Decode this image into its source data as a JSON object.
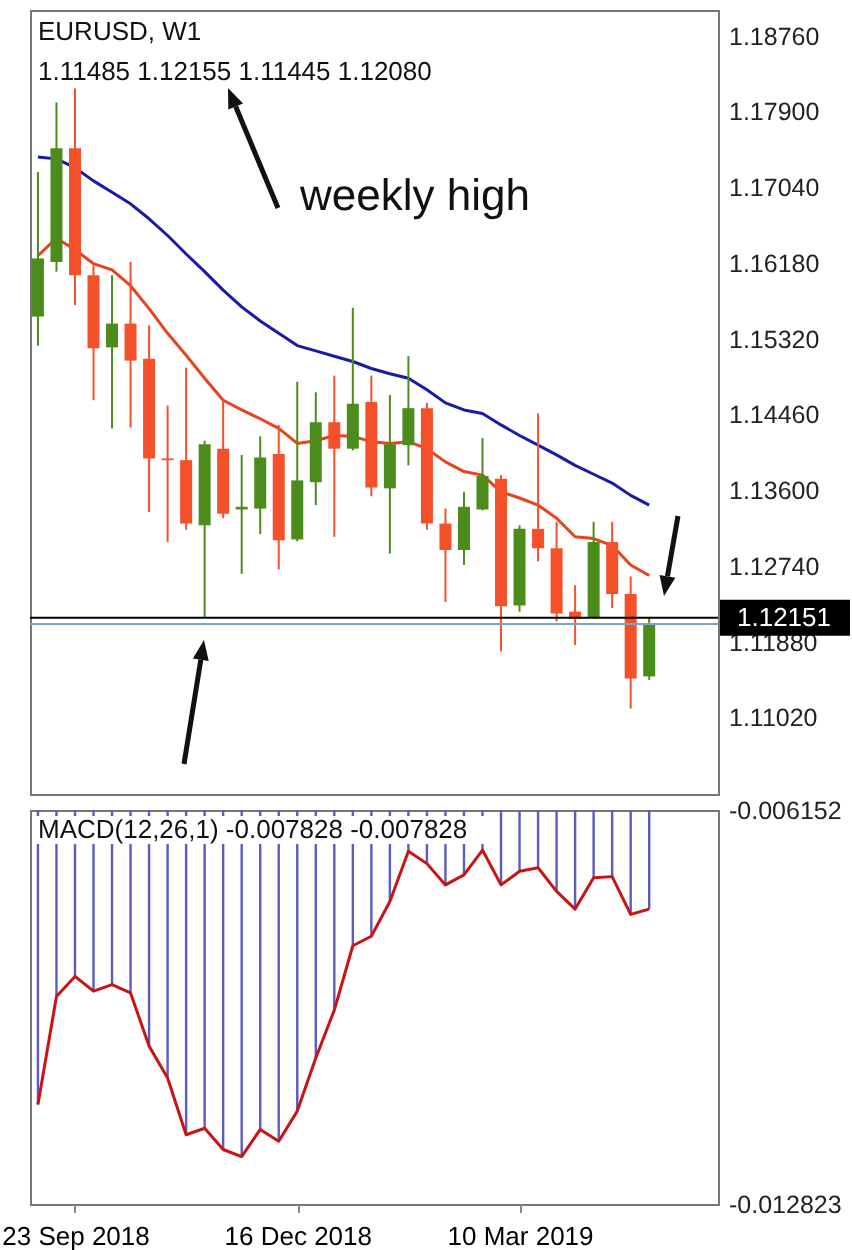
{
  "chart_data": [
    {
      "type": "candlestick",
      "title": "EURUSD, W1",
      "subtitle": "1.11485 1.12155 1.11445 1.12080",
      "annotations": [
        "weekly high"
      ],
      "x": [
        "2018-09-09",
        "2018-09-16",
        "2018-09-23",
        "2018-09-30",
        "2018-10-07",
        "2018-10-14",
        "2018-10-21",
        "2018-10-28",
        "2018-11-04",
        "2018-11-11",
        "2018-11-18",
        "2018-11-25",
        "2018-12-02",
        "2018-12-09",
        "2018-12-16",
        "2018-12-23",
        "2018-12-30",
        "2019-01-06",
        "2019-01-13",
        "2019-01-20",
        "2019-01-27",
        "2019-02-03",
        "2019-02-10",
        "2019-02-17",
        "2019-02-24",
        "2019-03-03",
        "2019-03-10",
        "2019-03-17",
        "2019-03-24",
        "2019-03-31",
        "2019-04-07",
        "2019-04-14",
        "2019-04-21",
        "2019-04-28"
      ],
      "ohlc": [
        [
          1.1557,
          1.1721,
          1.1524,
          1.1623
        ],
        [
          1.1619,
          1.18,
          1.1608,
          1.1748
        ],
        [
          1.1748,
          1.1816,
          1.157,
          1.1604
        ],
        [
          1.1604,
          1.1615,
          1.1462,
          1.1521
        ],
        [
          1.1522,
          1.1604,
          1.143,
          1.1549
        ],
        [
          1.1549,
          1.1619,
          1.1431,
          1.1507
        ],
        [
          1.1509,
          1.1547,
          1.1335,
          1.1396
        ],
        [
          1.1396,
          1.1456,
          1.1301,
          1.1394
        ],
        [
          1.1394,
          1.1499,
          1.1315,
          1.1322
        ],
        [
          1.132,
          1.1416,
          1.1215,
          1.1412
        ],
        [
          1.1407,
          1.1464,
          1.1328,
          1.1333
        ],
        [
          1.1338,
          1.14,
          1.1265,
          1.1341
        ],
        [
          1.1339,
          1.1421,
          1.131,
          1.1397
        ],
        [
          1.1401,
          1.1434,
          1.127,
          1.1303
        ],
        [
          1.1304,
          1.1483,
          1.1302,
          1.1371
        ],
        [
          1.1369,
          1.1471,
          1.1343,
          1.1437
        ],
        [
          1.1437,
          1.149,
          1.1307,
          1.1407
        ],
        [
          1.1407,
          1.1567,
          1.1405,
          1.1458
        ],
        [
          1.146,
          1.149,
          1.1353,
          1.1363
        ],
        [
          1.1362,
          1.1468,
          1.1288,
          1.1412
        ],
        [
          1.1411,
          1.1512,
          1.1388,
          1.1453
        ],
        [
          1.1453,
          1.1459,
          1.1315,
          1.1322
        ],
        [
          1.1322,
          1.1339,
          1.1233,
          1.1292
        ],
        [
          1.1292,
          1.1358,
          1.1275,
          1.1341
        ],
        [
          1.1338,
          1.1419,
          1.1337,
          1.1376
        ],
        [
          1.1373,
          1.1377,
          1.1177,
          1.1228
        ],
        [
          1.1229,
          1.132,
          1.1222,
          1.1316
        ],
        [
          1.1316,
          1.1447,
          1.1279,
          1.1294
        ],
        [
          1.1294,
          1.1324,
          1.1211,
          1.122
        ],
        [
          1.1222,
          1.1252,
          1.1184,
          1.1214
        ],
        [
          1.1216,
          1.1324,
          1.1215,
          1.1301
        ],
        [
          1.1301,
          1.1324,
          1.1226,
          1.1242
        ],
        [
          1.1242,
          1.1262,
          1.1112,
          1.1146
        ],
        [
          1.11485,
          1.12155,
          1.11445,
          1.1208
        ]
      ],
      "colors": [
        "#4c8c1c",
        "#4c8c1c",
        "#f4502a",
        "#f4502a",
        "#4c8c1c",
        "#f4502a",
        "#f4502a",
        "#f4502a",
        "#f4502a",
        "#4c8c1c",
        "#f4502a",
        "#4c8c1c",
        "#4c8c1c",
        "#f4502a",
        "#4c8c1c",
        "#4c8c1c",
        "#f4502a",
        "#4c8c1c",
        "#f4502a",
        "#4c8c1c",
        "#4c8c1c",
        "#f4502a",
        "#f4502a",
        "#4c8c1c",
        "#4c8c1c",
        "#f4502a",
        "#4c8c1c",
        "#f4502a",
        "#f4502a",
        "#f4502a",
        "#4c8c1c",
        "#f4502a",
        "#f4502a",
        "#4c8c1c"
      ],
      "series": [
        {
          "type": "line",
          "color": "#e8431f",
          "values": [
            1.1626,
            1.1646,
            1.1633,
            1.1617,
            1.161,
            1.1592,
            1.1566,
            1.1538,
            1.1513,
            1.1487,
            1.1462,
            1.1451,
            1.1441,
            1.143,
            1.1413,
            1.1416,
            1.1422,
            1.1421,
            1.1415,
            1.1413,
            1.1415,
            1.1407,
            1.1392,
            1.1381,
            1.1377,
            1.1358,
            1.1351,
            1.1343,
            1.1328,
            1.1307,
            1.1305,
            1.1297,
            1.1275,
            1.1263
          ]
        },
        {
          "type": "line",
          "color": "#1a1aa8",
          "values": [
            1.1738,
            1.1736,
            1.1726,
            1.1711,
            1.1698,
            1.1685,
            1.1668,
            1.1649,
            1.1628,
            1.1608,
            1.1587,
            1.1568,
            1.1552,
            1.1538,
            1.1524,
            1.1518,
            1.1512,
            1.1506,
            1.1498,
            1.1492,
            1.1487,
            1.1474,
            1.1459,
            1.1451,
            1.1447,
            1.1434,
            1.1422,
            1.1411,
            1.14,
            1.1388,
            1.1378,
            1.1368,
            1.1354,
            1.1343
          ]
        }
      ],
      "xlim": [
        "2018-09-06",
        "2019-05-24"
      ],
      "ylim": [
        1.1015,
        1.1905
      ],
      "yticks": [
        {
          "value": 1.1876,
          "label": "1.18760"
        },
        {
          "value": 1.179,
          "label": "1.17900"
        },
        {
          "value": 1.1704,
          "label": "1.17040"
        },
        {
          "value": 1.1618,
          "label": "1.16180"
        },
        {
          "value": 1.1532,
          "label": "1.15320"
        },
        {
          "value": 1.1446,
          "label": "1.14460"
        },
        {
          "value": 1.136,
          "label": "1.13600"
        },
        {
          "value": 1.1274,
          "label": "1.12740"
        },
        {
          "value": 1.1188,
          "label": "1.11880"
        },
        {
          "value": 1.1102,
          "label": "1.11020"
        }
      ],
      "ref_lines": [
        {
          "axis": "y",
          "value": 1.1208,
          "color": "#7aa6cc"
        },
        {
          "axis": "y",
          "value": 1.12151,
          "label": "1.12151",
          "color": "#000000"
        }
      ],
      "tick_labels": "y"
    },
    {
      "type": "bar",
      "title": "MACD(12,26,1) -0.007828 -0.007828",
      "x": [
        "2018-09-09",
        "2018-09-16",
        "2018-09-23",
        "2018-09-30",
        "2018-10-07",
        "2018-10-14",
        "2018-10-21",
        "2018-10-28",
        "2018-11-04",
        "2018-11-11",
        "2018-11-18",
        "2018-11-25",
        "2018-12-02",
        "2018-12-09",
        "2018-12-16",
        "2018-12-23",
        "2018-12-30",
        "2019-01-06",
        "2019-01-13",
        "2019-01-20",
        "2019-01-27",
        "2019-02-03",
        "2019-02-10",
        "2019-02-17",
        "2019-02-24",
        "2019-03-03",
        "2019-03-10",
        "2019-03-17",
        "2019-03-24",
        "2019-03-31",
        "2019-04-07",
        "2019-04-14",
        "2019-04-21",
        "2019-04-28"
      ],
      "series": [
        {
          "type": "bar",
          "color": "#5b5bc0",
          "values": [
            -0.01114,
            -0.00931,
            -0.00897,
            -0.00922,
            -0.00911,
            -0.00925,
            -0.01015,
            -0.01069,
            -0.01165,
            -0.01154,
            -0.0119,
            -0.01202,
            -0.01156,
            -0.01176,
            -0.01125,
            -0.01035,
            -0.00954,
            -0.00845,
            -0.00829,
            -0.0077,
            -0.00685,
            -0.00706,
            -0.00742,
            -0.00725,
            -0.00683,
            -0.00742,
            -0.00719,
            -0.00713,
            -0.00753,
            -0.00783,
            -0.0073,
            -0.00728,
            -0.00792,
            -0.00783
          ]
        },
        {
          "type": "line",
          "color": "#c81414",
          "values": [
            -0.01114,
            -0.00931,
            -0.00897,
            -0.00922,
            -0.00911,
            -0.00925,
            -0.01015,
            -0.01069,
            -0.01165,
            -0.01154,
            -0.0119,
            -0.01202,
            -0.01156,
            -0.01176,
            -0.01125,
            -0.01035,
            -0.00954,
            -0.00845,
            -0.00829,
            -0.0077,
            -0.00685,
            -0.00706,
            -0.00742,
            -0.00725,
            -0.00683,
            -0.00742,
            -0.00719,
            -0.00713,
            -0.00753,
            -0.00783,
            -0.0073,
            -0.00728,
            -0.00792,
            -0.00783
          ]
        }
      ],
      "xlim": [
        "2018-09-06",
        "2019-05-24"
      ],
      "xticks": [
        {
          "value": "2018-09-23",
          "label": "23 Sep 2018"
        },
        {
          "value": "2018-12-16",
          "label": "16 Dec 2018"
        },
        {
          "value": "2019-03-10",
          "label": "10 Mar 2019"
        }
      ],
      "ylim": [
        -0.012823,
        -0.006152
      ],
      "yticks": [
        -0.006152,
        -0.012823
      ]
    }
  ]
}
